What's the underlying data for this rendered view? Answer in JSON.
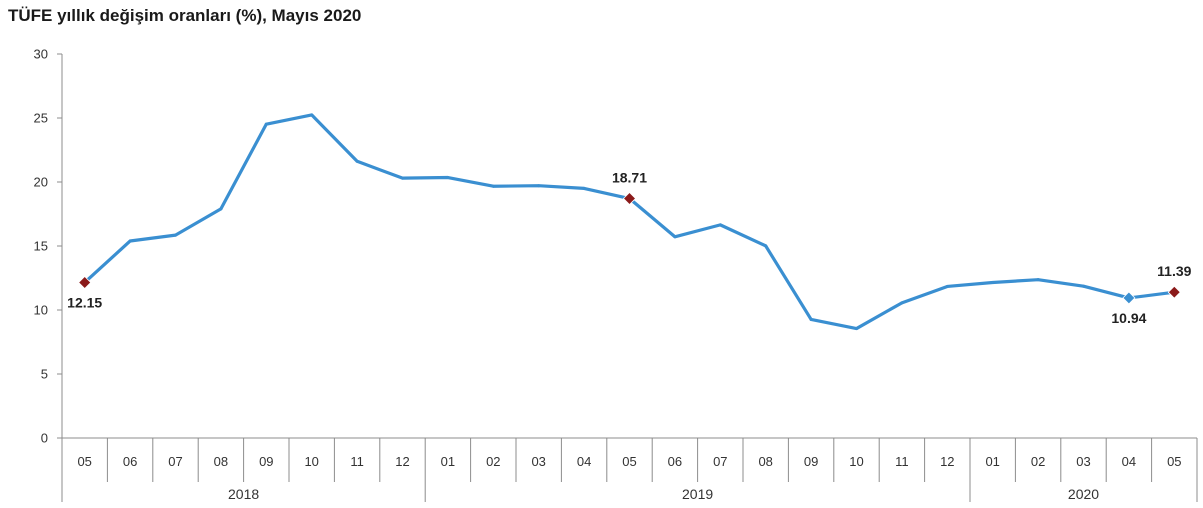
{
  "chart_data": {
    "type": "line",
    "title": "TÜFE yıllık değişim oranları (%), Mayıs 2020",
    "xlabel": "",
    "ylabel": "",
    "ylim": [
      0,
      30
    ],
    "yticks": [
      0,
      5,
      10,
      15,
      20,
      25,
      30
    ],
    "grid": false,
    "legend": "none",
    "categories": [
      "05",
      "06",
      "07",
      "08",
      "09",
      "10",
      "11",
      "12",
      "01",
      "02",
      "03",
      "04",
      "05",
      "06",
      "07",
      "08",
      "09",
      "10",
      "11",
      "12",
      "01",
      "02",
      "03",
      "04",
      "05"
    ],
    "years": [
      {
        "label": "2018",
        "span": 8
      },
      {
        "label": "2019",
        "span": 12
      },
      {
        "label": "2020",
        "span": 5
      }
    ],
    "series": [
      {
        "color": "#3a8fd1",
        "values": [
          12.15,
          15.39,
          15.85,
          17.9,
          24.52,
          25.24,
          21.62,
          20.3,
          20.35,
          19.67,
          19.71,
          19.5,
          18.71,
          15.72,
          16.65,
          15.01,
          9.26,
          8.55,
          10.56,
          11.84,
          12.15,
          12.37,
          11.86,
          10.94,
          11.39
        ]
      }
    ],
    "marker_color": "#8b1a1a",
    "highlights": [
      {
        "index": 0,
        "label": "12.15",
        "position": "below",
        "marker_color": "#8b1a1a"
      },
      {
        "index": 12,
        "label": "18.71",
        "position": "above",
        "marker_color": "#8b1a1a"
      },
      {
        "index": 23,
        "label": "10.94",
        "position": "below",
        "marker_color": "#3a8fd1"
      },
      {
        "index": 24,
        "label": "11.39",
        "position": "above",
        "marker_color": "#8b1a1a"
      }
    ]
  }
}
